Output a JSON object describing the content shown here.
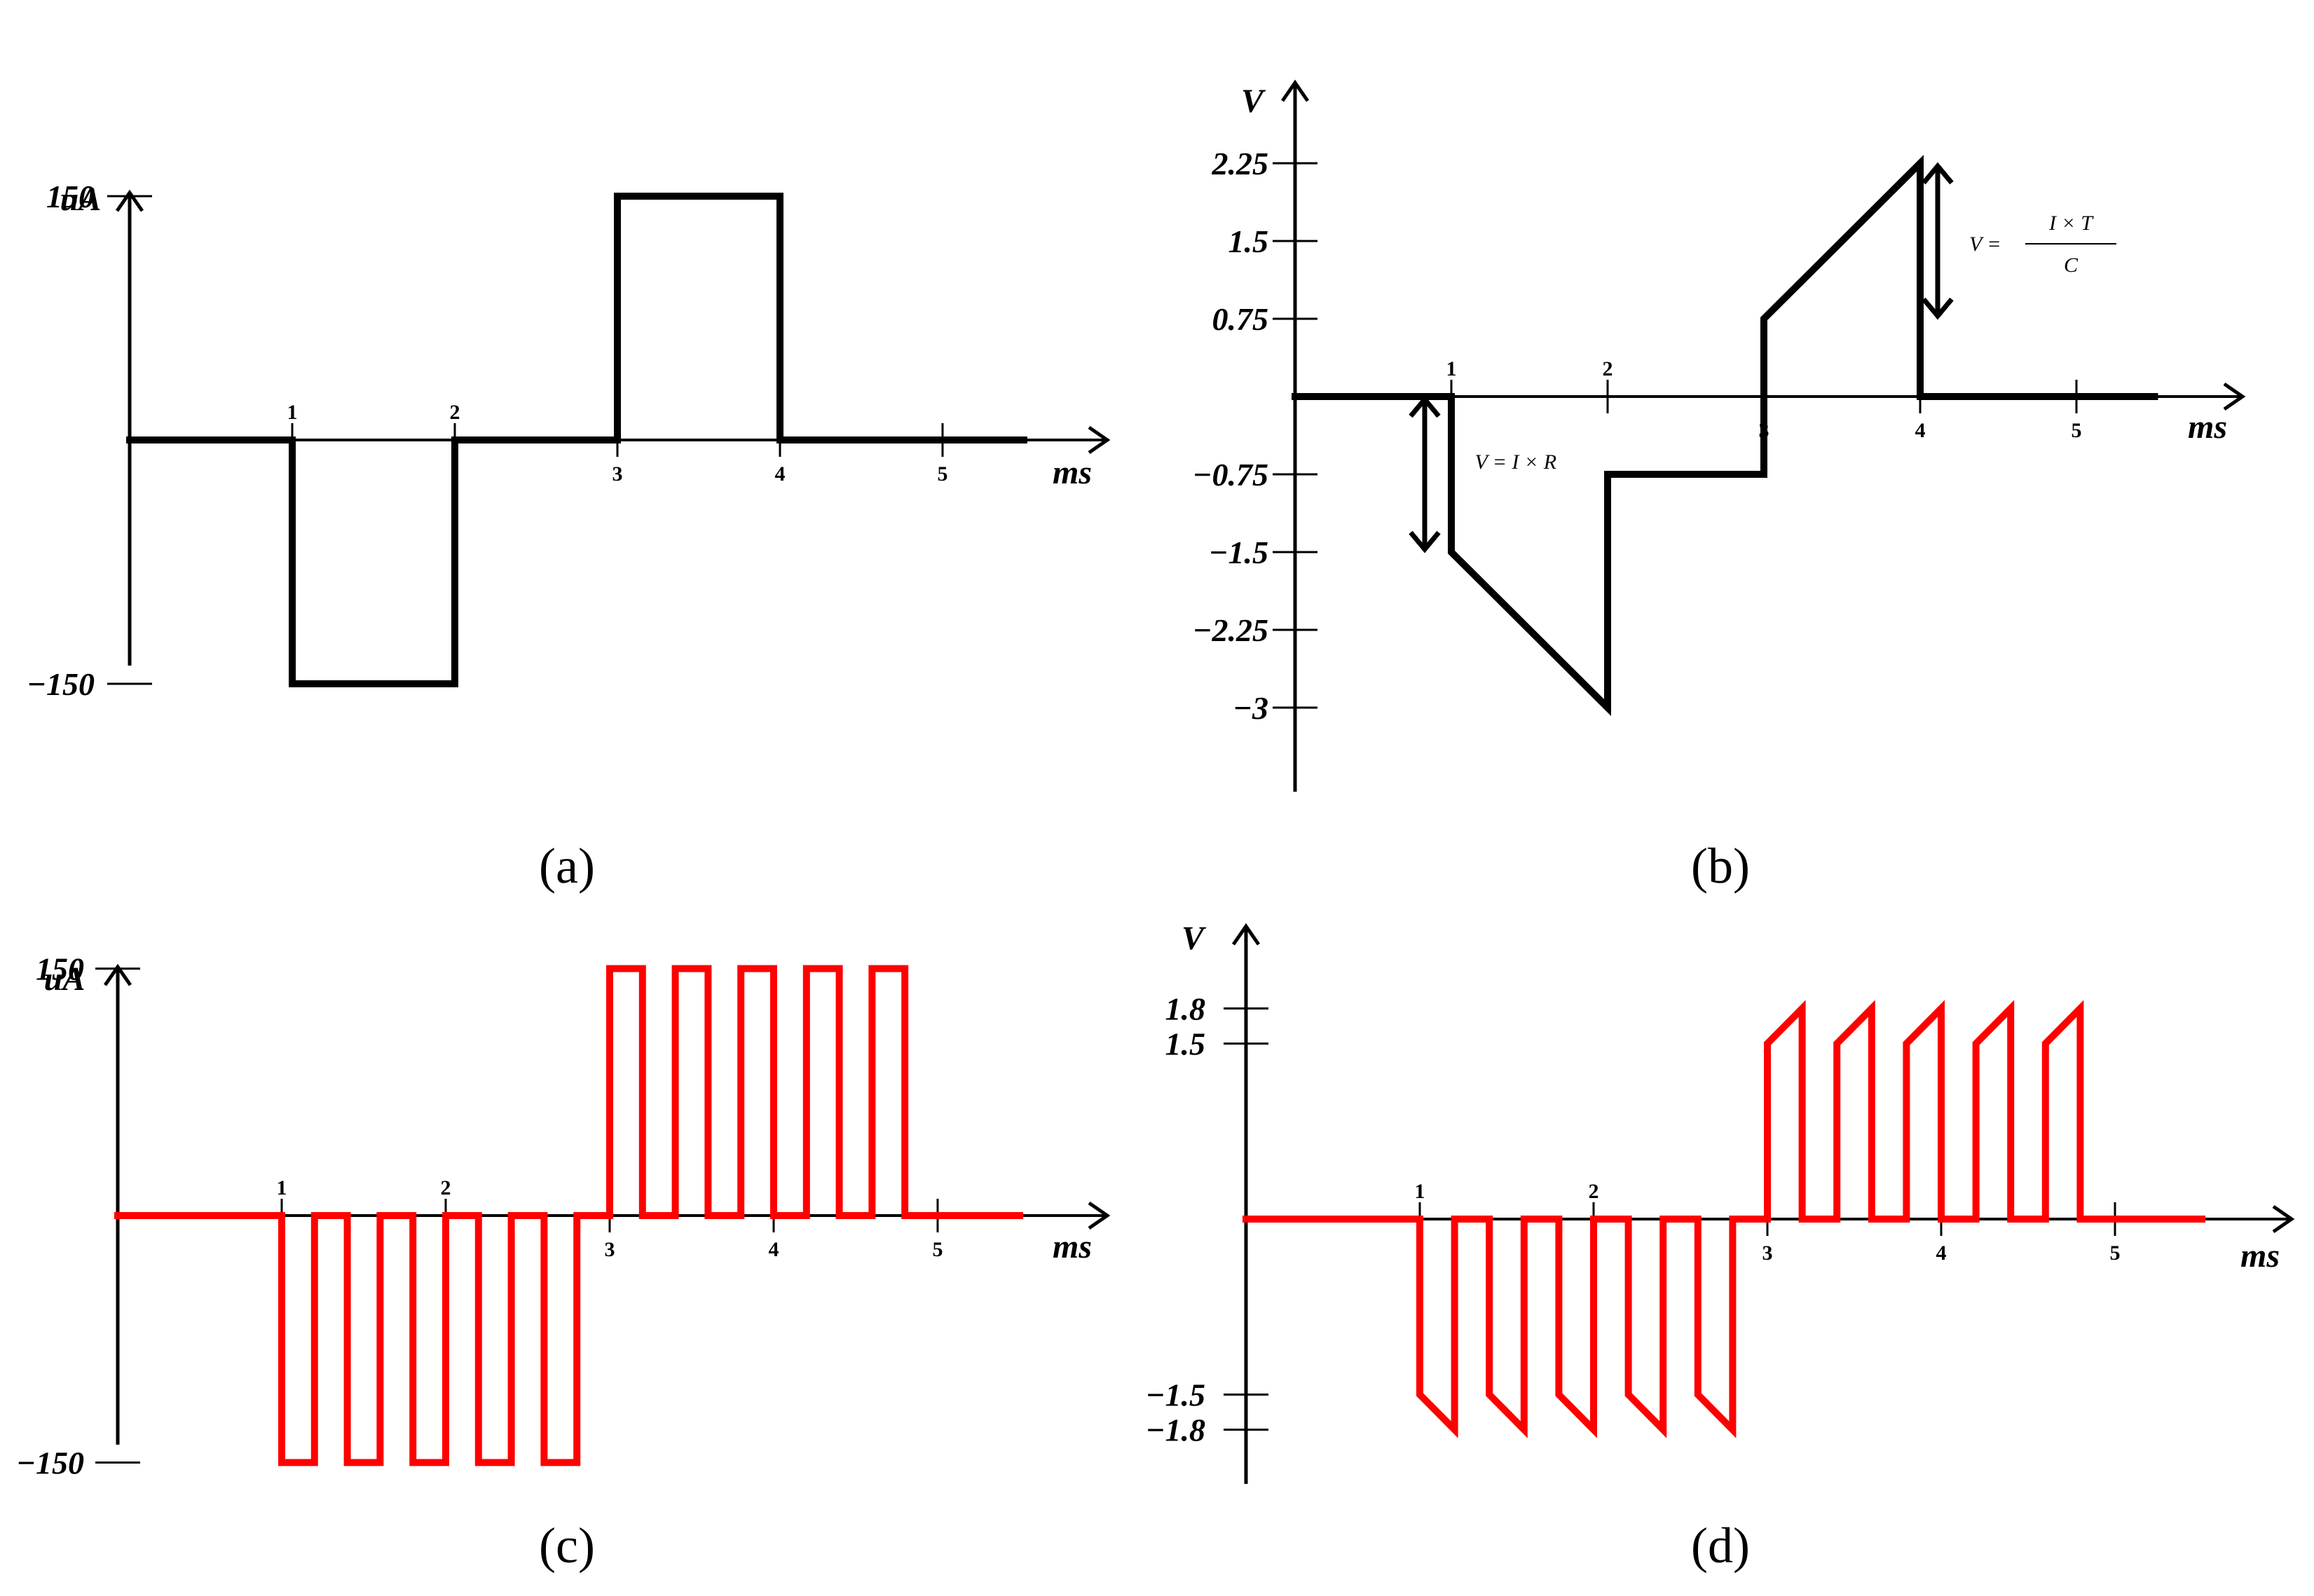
{
  "chart_data": [
    {
      "id": "a",
      "type": "line",
      "panel_label": "(a)",
      "y_unit": "uA",
      "x_unit": "ms",
      "xlim": [
        0,
        5.5
      ],
      "ylim": [
        -150,
        150
      ],
      "x_ticks": [
        "1",
        "2",
        "3",
        "4",
        "5"
      ],
      "y_ticks": [
        "150",
        "−150"
      ],
      "line_color": "#000000",
      "series": [
        {
          "points": [
            [
              0,
              0
            ],
            [
              1,
              0
            ],
            [
              1,
              -150
            ],
            [
              2,
              -150
            ],
            [
              2,
              0
            ],
            [
              3,
              0
            ],
            [
              3,
              150
            ],
            [
              4,
              150
            ],
            [
              4,
              0
            ],
            [
              5.5,
              0
            ]
          ]
        }
      ]
    },
    {
      "id": "b",
      "type": "line",
      "panel_label": "(b)",
      "y_unit": "V",
      "x_unit": "ms",
      "xlim": [
        0,
        5.5
      ],
      "ylim": [
        -3,
        2.25
      ],
      "x_ticks": [
        "1",
        "2",
        "3",
        "4",
        "5"
      ],
      "y_ticks": [
        "2.25",
        "1.5",
        "0.75",
        "−0.75",
        "−1.5",
        "−2.25",
        "−3"
      ],
      "line_color": "#000000",
      "annotations": [
        "V = I × R",
        "V = (I × T) / C"
      ],
      "series": [
        {
          "points": [
            [
              0,
              0
            ],
            [
              1,
              0
            ],
            [
              1,
              -1.5
            ],
            [
              2,
              -3
            ],
            [
              2,
              -0.75
            ],
            [
              3,
              -0.75
            ],
            [
              3,
              0.75
            ],
            [
              4,
              2.25
            ],
            [
              4,
              0
            ],
            [
              5.5,
              0
            ]
          ]
        }
      ]
    },
    {
      "id": "c",
      "type": "line",
      "panel_label": "(c)",
      "y_unit": "uA",
      "x_unit": "ms",
      "xlim": [
        0,
        5.5
      ],
      "ylim": [
        -150,
        150
      ],
      "x_ticks": [
        "1",
        "2",
        "3",
        "4",
        "5"
      ],
      "y_ticks": [
        "150",
        "−150"
      ],
      "line_color": "#ff0000",
      "series": [
        {
          "points": [
            [
              0,
              0
            ],
            [
              1,
              0
            ],
            [
              1,
              -150
            ],
            [
              1.2,
              -150
            ],
            [
              1.2,
              0
            ],
            [
              1.4,
              0
            ],
            [
              1.4,
              -150
            ],
            [
              1.6,
              -150
            ],
            [
              1.6,
              0
            ],
            [
              1.8,
              0
            ],
            [
              1.8,
              -150
            ],
            [
              2.0,
              -150
            ],
            [
              2.0,
              0
            ],
            [
              2.2,
              0
            ],
            [
              2.2,
              -150
            ],
            [
              2.4,
              -150
            ],
            [
              2.4,
              0
            ],
            [
              2.6,
              0
            ],
            [
              2.6,
              -150
            ],
            [
              2.8,
              -150
            ],
            [
              2.8,
              0
            ],
            [
              3.0,
              0
            ],
            [
              3.0,
              150
            ],
            [
              3.2,
              150
            ],
            [
              3.2,
              0
            ],
            [
              3.4,
              0
            ],
            [
              3.4,
              150
            ],
            [
              3.6,
              150
            ],
            [
              3.6,
              0
            ],
            [
              3.8,
              0
            ],
            [
              3.8,
              150
            ],
            [
              4.0,
              150
            ],
            [
              4.0,
              0
            ],
            [
              4.2,
              0
            ],
            [
              4.2,
              150
            ],
            [
              4.4,
              150
            ],
            [
              4.4,
              0
            ],
            [
              4.6,
              0
            ],
            [
              4.6,
              150
            ],
            [
              4.8,
              150
            ],
            [
              4.8,
              0
            ],
            [
              5.5,
              0
            ]
          ]
        }
      ]
    },
    {
      "id": "d",
      "type": "line",
      "panel_label": "(d)",
      "y_unit": "V",
      "x_unit": "ms",
      "xlim": [
        0,
        5.5
      ],
      "ylim": [
        -1.8,
        1.8
      ],
      "x_ticks": [
        "1",
        "2",
        "3",
        "4",
        "5"
      ],
      "y_ticks": [
        "1.8",
        "1.5",
        "−1.5",
        "−1.8"
      ],
      "line_color": "#ff0000",
      "series": [
        {
          "points": [
            [
              0,
              0
            ],
            [
              1,
              0
            ],
            [
              1,
              -1.5
            ],
            [
              1.2,
              -1.8
            ],
            [
              1.2,
              0
            ],
            [
              1.4,
              0
            ],
            [
              1.4,
              -1.5
            ],
            [
              1.6,
              -1.8
            ],
            [
              1.6,
              0
            ],
            [
              1.8,
              0
            ],
            [
              1.8,
              -1.5
            ],
            [
              2.0,
              -1.8
            ],
            [
              2.0,
              0
            ],
            [
              2.2,
              0
            ],
            [
              2.2,
              -1.5
            ],
            [
              2.4,
              -1.8
            ],
            [
              2.4,
              0
            ],
            [
              2.6,
              0
            ],
            [
              2.6,
              -1.5
            ],
            [
              2.8,
              -1.8
            ],
            [
              2.8,
              0
            ],
            [
              3.0,
              0
            ],
            [
              3.0,
              1.5
            ],
            [
              3.2,
              1.8
            ],
            [
              3.2,
              0
            ],
            [
              3.4,
              0
            ],
            [
              3.4,
              1.5
            ],
            [
              3.6,
              1.8
            ],
            [
              3.6,
              0
            ],
            [
              3.8,
              0
            ],
            [
              3.8,
              1.5
            ],
            [
              4.0,
              1.8
            ],
            [
              4.0,
              0
            ],
            [
              4.2,
              0
            ],
            [
              4.2,
              1.5
            ],
            [
              4.4,
              1.8
            ],
            [
              4.4,
              0
            ],
            [
              4.6,
              0
            ],
            [
              4.6,
              1.5
            ],
            [
              4.8,
              1.8
            ],
            [
              4.8,
              0
            ],
            [
              5.5,
              0
            ]
          ]
        }
      ]
    }
  ]
}
